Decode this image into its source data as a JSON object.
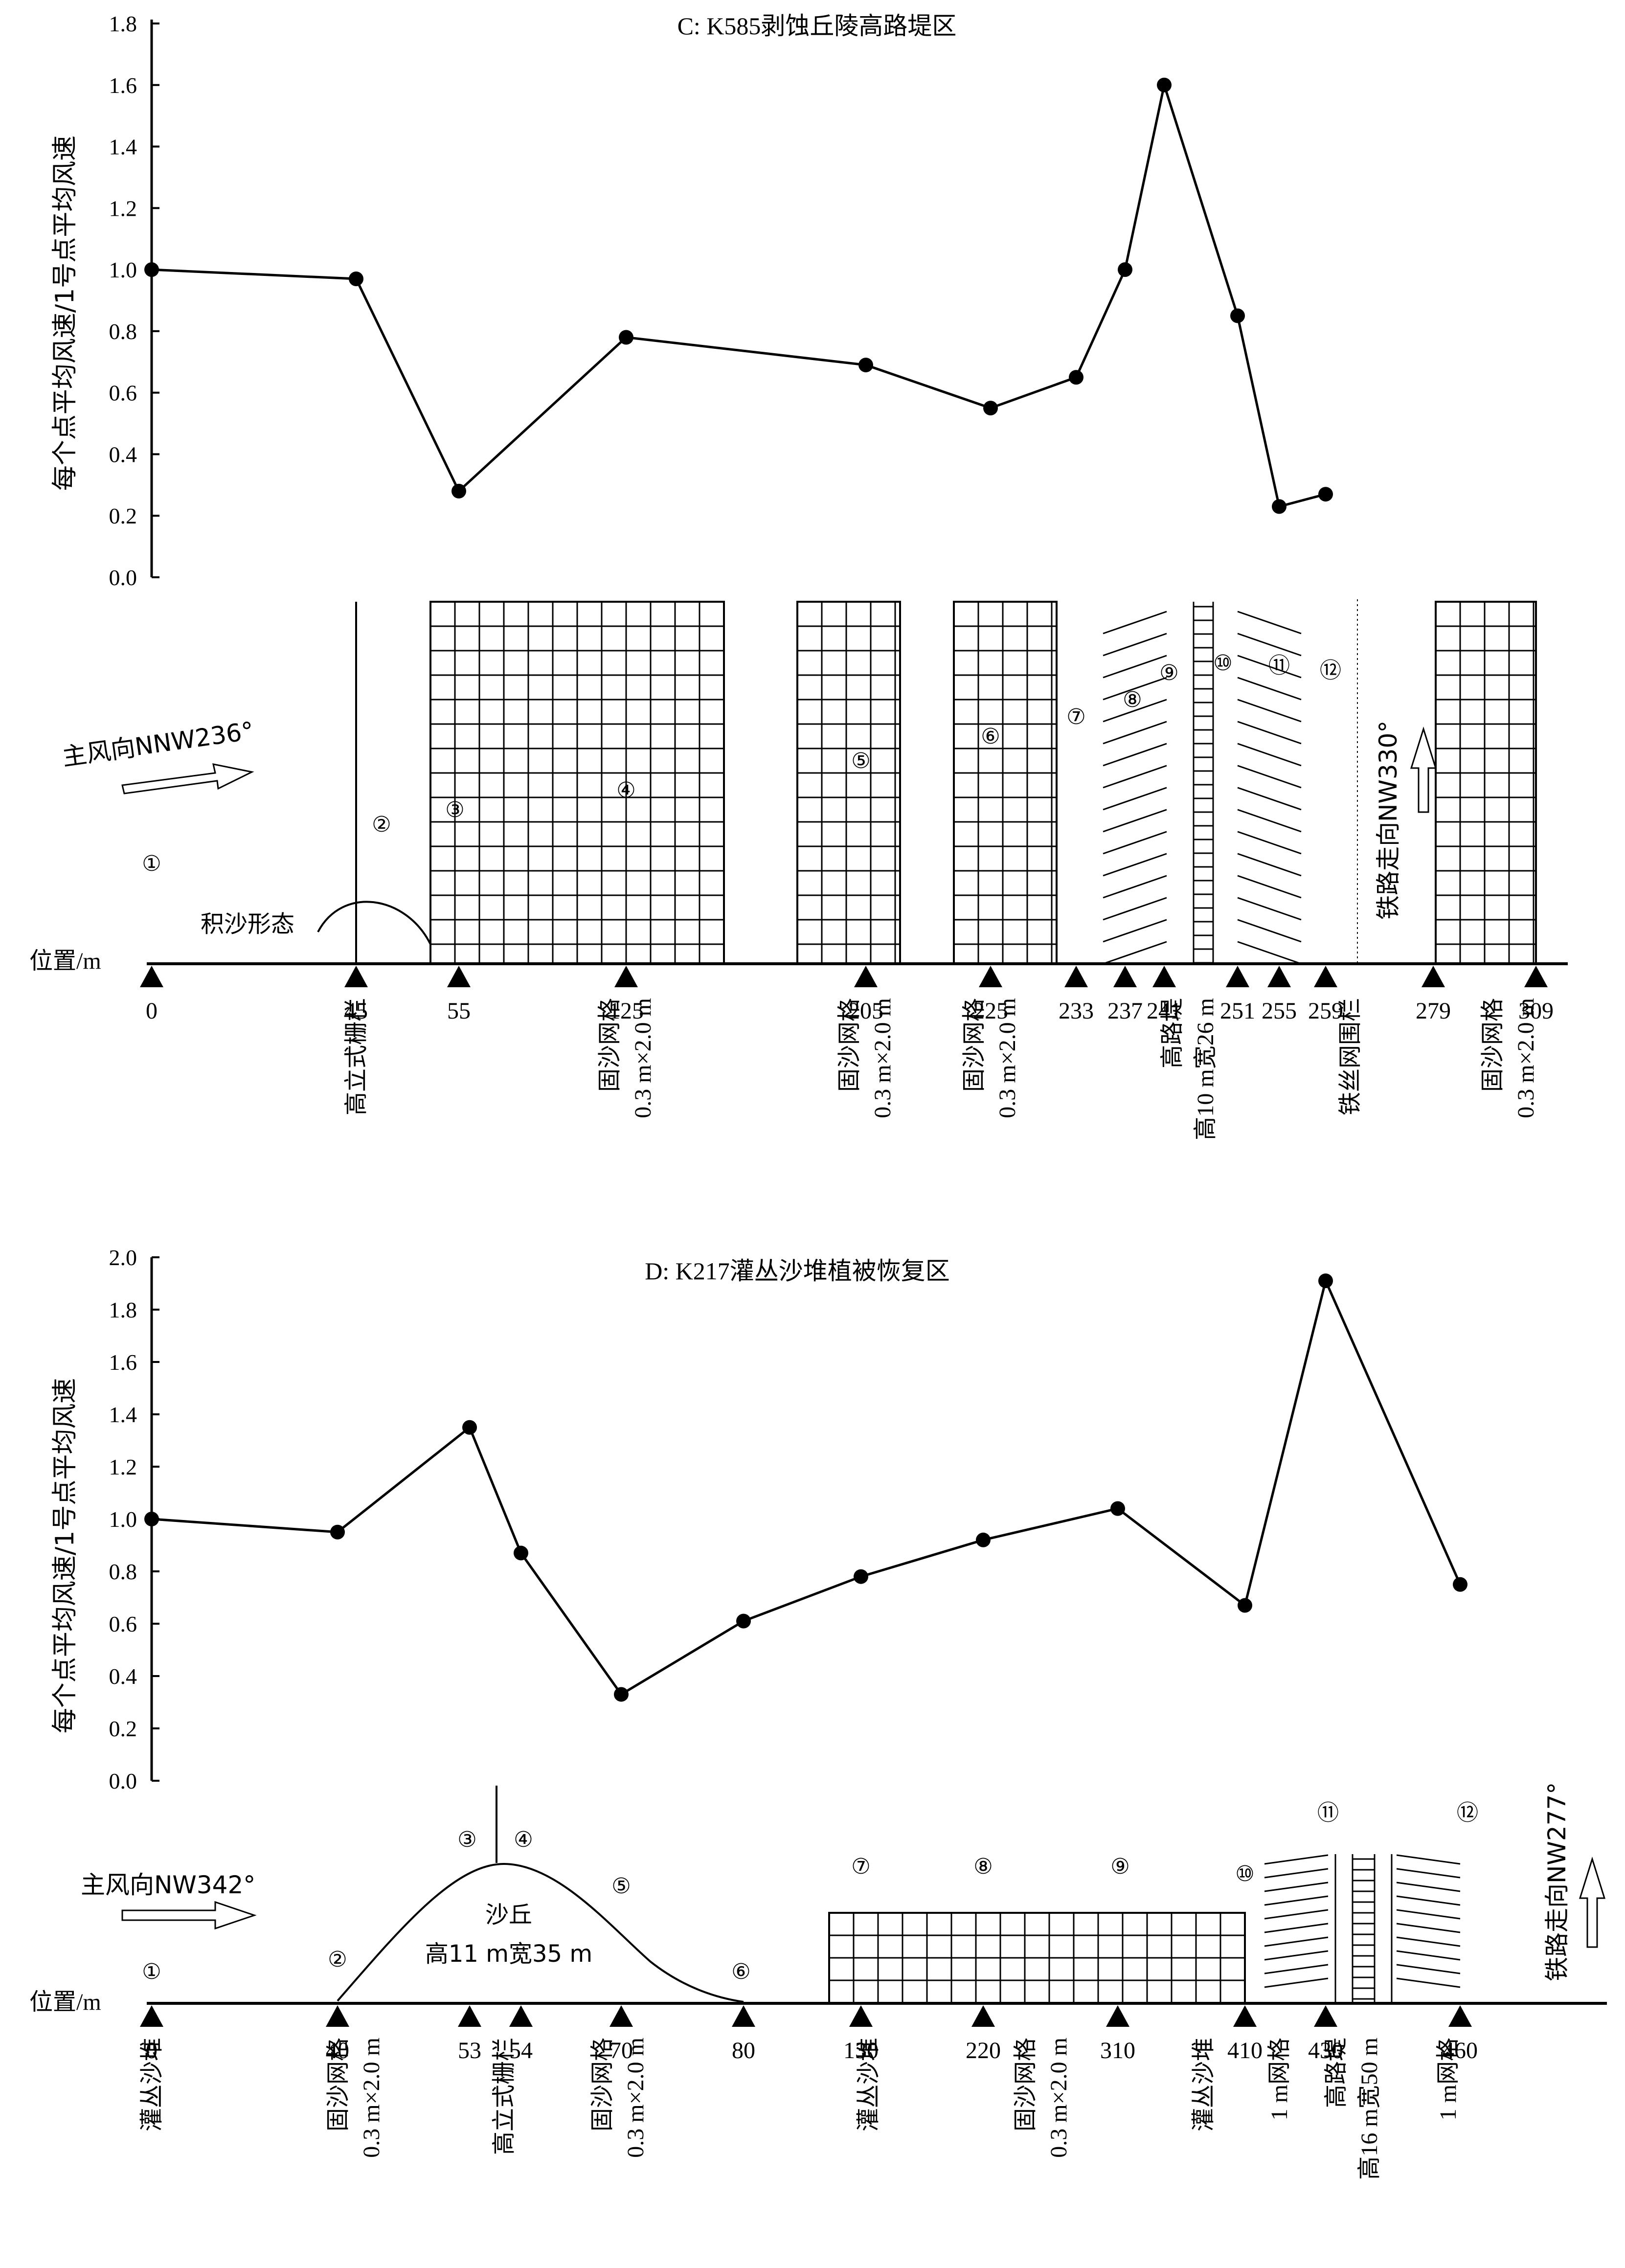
{
  "chart_data": [
    {
      "type": "line",
      "title": "C: K585剥蚀丘陵高路堤区",
      "ylabel": "每个点平均风速/1号点平均风速",
      "xlabel": "位置/m",
      "ylim": [
        0,
        1.8
      ],
      "yticks": [
        "0.0",
        "0.2",
        "0.4",
        "0.6",
        "0.8",
        "1.0",
        "1.2",
        "1.4",
        "1.6",
        "1.8"
      ],
      "grid": false,
      "points": [
        {
          "label": "①",
          "x": 0,
          "y": 1.0
        },
        {
          "label": "②",
          "x": 45,
          "y": 0.97
        },
        {
          "label": "③",
          "x": 55,
          "y": 0.28
        },
        {
          "label": "④",
          "x": 125,
          "y": 0.78
        },
        {
          "label": "⑤",
          "x": 205,
          "y": 0.69
        },
        {
          "label": "⑥",
          "x": 225,
          "y": 0.55
        },
        {
          "label": "⑦",
          "x": 233,
          "y": 0.65
        },
        {
          "label": "⑧",
          "x": 237,
          "y": 1.0
        },
        {
          "label": "⑨",
          "x": 241,
          "y": 1.6
        },
        {
          "label": "⑩",
          "x": 251,
          "y": 0.85
        },
        {
          "label": "⑪",
          "x": 255,
          "y": 0.23
        },
        {
          "label": "⑫",
          "x": 259,
          "y": 0.27
        }
      ],
      "positions": [
        "0",
        "45",
        "55",
        "125",
        "205",
        "225",
        "233",
        "237",
        "241",
        "251",
        "255",
        "259",
        "279",
        "309"
      ],
      "wind_label": "主风向NNW236°",
      "rail_label": "铁路走向NW330°",
      "sand_label": "积沙形态",
      "position_label": "位置/m",
      "facility_labels": [
        {
          "pos": "45",
          "lines": [
            "高立式栅栏"
          ]
        },
        {
          "pos": "125",
          "lines": [
            "固沙网格",
            "0.3 m×2.0 m"
          ]
        },
        {
          "pos": "205",
          "lines": [
            "固沙网格",
            "0.3 m×2.0 m"
          ]
        },
        {
          "pos": "225",
          "lines": [
            "固沙网格",
            "0.3 m×2.0 m"
          ]
        },
        {
          "pos": "241",
          "lines": [
            "高路堤",
            "高10 m宽26 m"
          ]
        },
        {
          "pos": "259",
          "lines": [
            "铁丝网围栏"
          ]
        },
        {
          "pos": "309",
          "lines": [
            "固沙网格",
            "0.3 m×2.0 m"
          ]
        }
      ]
    },
    {
      "type": "line",
      "title": "D: K217灌丛沙堆植被恢复区",
      "ylabel": "每个点平均风速/1号点平均风速",
      "xlabel": "位置/m",
      "ylim": [
        0,
        2.0
      ],
      "yticks": [
        "0.0",
        "0.2",
        "0.4",
        "0.6",
        "0.8",
        "1.0",
        "1.2",
        "1.4",
        "1.6",
        "1.8",
        "2.0"
      ],
      "grid": false,
      "points": [
        {
          "label": "①",
          "x": 0,
          "y": 1.0
        },
        {
          "label": "②",
          "x": 40,
          "y": 0.95
        },
        {
          "label": "③",
          "x": 53,
          "y": 1.35
        },
        {
          "label": "④",
          "x": 54,
          "y": 0.87
        },
        {
          "label": "⑤",
          "x": 70,
          "y": 0.33
        },
        {
          "label": "⑥",
          "x": 80,
          "y": 0.61
        },
        {
          "label": "⑦",
          "x": 130,
          "y": 0.78
        },
        {
          "label": "⑧",
          "x": 220,
          "y": 0.92
        },
        {
          "label": "⑨",
          "x": 310,
          "y": 1.04
        },
        {
          "label": "⑩",
          "x": 410,
          "y": 0.67
        },
        {
          "label": "⑪",
          "x": 430,
          "y": 1.91
        },
        {
          "label": "⑫",
          "x": 460,
          "y": 0.75
        }
      ],
      "positions": [
        "0",
        "40",
        "53",
        "54",
        "70",
        "80",
        "130",
        "220",
        "310",
        "410",
        "430",
        "460"
      ],
      "wind_label": "主风向NW342°",
      "rail_label": "铁路走向NW277°",
      "dune_label": "沙丘",
      "dune_size": "高11 m宽35 m",
      "position_label": "位置/m",
      "facility_labels": [
        {
          "pos": "0",
          "lines": [
            "灌丛沙堆"
          ]
        },
        {
          "pos": "40",
          "lines": [
            "固沙网格",
            "0.3 m×2.0 m"
          ]
        },
        {
          "pos": "53",
          "lines": [
            "高立式栅栏"
          ]
        },
        {
          "pos": "70",
          "lines": [
            "固沙网格",
            "0.3 m×2.0 m"
          ]
        },
        {
          "pos": "130",
          "lines": [
            "灌丛沙堆"
          ]
        },
        {
          "pos": "220",
          "lines": [
            "固沙网格",
            "0.3 m×2.0 m"
          ]
        },
        {
          "pos": "310",
          "lines": [
            "灌丛沙堆"
          ]
        },
        {
          "pos": "410",
          "lines": [
            "1 m网格"
          ]
        },
        {
          "pos": "430",
          "lines": [
            "高路堤",
            "高16 m宽50 m"
          ]
        },
        {
          "pos": "460",
          "lines": [
            "1 m网格"
          ]
        }
      ]
    }
  ]
}
